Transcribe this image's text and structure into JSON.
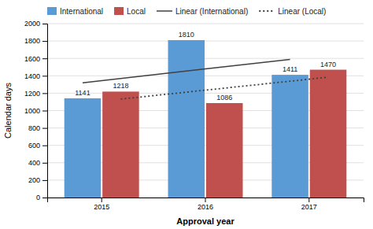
{
  "chart_data": {
    "type": "bar",
    "x_label": "Approval year",
    "y_label": "Calendar days",
    "categories": [
      "2015",
      "2016",
      "2017"
    ],
    "series": [
      {
        "name": "International",
        "type": "bar",
        "color": "#5B9BD5",
        "values": [
          1141,
          1810,
          1411
        ]
      },
      {
        "name": "Local",
        "type": "bar",
        "color": "#C0504D",
        "values": [
          1218,
          1086,
          1470
        ]
      },
      {
        "name": "Linear (International)",
        "type": "line",
        "color": "#404040",
        "line_style": "solid",
        "values": [
          1319,
          1454,
          1589
        ]
      },
      {
        "name": "Linear (Local)",
        "type": "line",
        "color": "#404040",
        "line_style": "dotted",
        "values": [
          1132,
          1258,
          1384
        ]
      }
    ],
    "ylim": [
      0,
      2000
    ],
    "yticks": [
      0,
      200,
      400,
      600,
      800,
      1000,
      1200,
      1400,
      1600,
      1800,
      2000
    ],
    "grid": true,
    "legend": "upper left",
    "data_labels": true
  }
}
